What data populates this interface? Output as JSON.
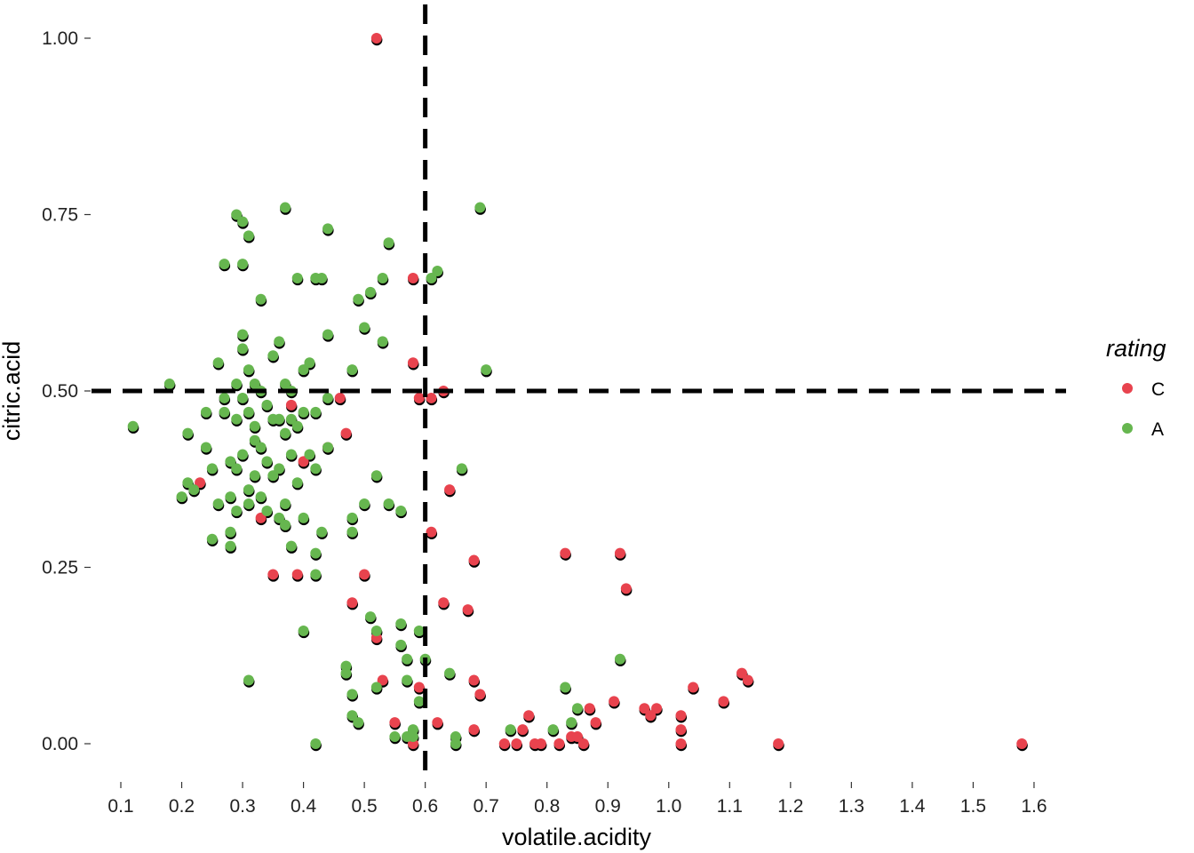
{
  "chart_data": {
    "type": "scatter",
    "xlabel": "volatile.acidity",
    "ylabel": "citric.acid",
    "xlim": [
      0.08,
      1.66
    ],
    "ylim": [
      -0.05,
      1.05
    ],
    "x_ticks": [
      "0.1",
      "0.2",
      "0.3",
      "0.4",
      "0.5",
      "0.6",
      "0.7",
      "0.8",
      "0.9",
      "1.0",
      "1.1",
      "1.2",
      "1.3",
      "1.4",
      "1.5",
      "1.6"
    ],
    "x_tick_values": [
      0.1,
      0.2,
      0.3,
      0.4,
      0.5,
      0.6,
      0.7,
      0.8,
      0.9,
      1.0,
      1.1,
      1.2,
      1.3,
      1.4,
      1.5,
      1.6
    ],
    "y_ticks": [
      "0.00",
      "0.25",
      "0.50",
      "0.75",
      "1.00"
    ],
    "y_tick_values": [
      0,
      0.25,
      0.5,
      0.75,
      1.0
    ],
    "grid": false,
    "reference_lines": {
      "vertical_x": 0.6,
      "horizontal_y": 0.5,
      "style": "dashed",
      "color": "#000000"
    },
    "legend": {
      "title": "rating",
      "placement": "right",
      "entries": [
        {
          "label": "C",
          "color": "#E8434E"
        },
        {
          "label": "A",
          "color": "#66B64F"
        }
      ]
    },
    "series": [
      {
        "name": "C",
        "color": "#E8434E",
        "points": [
          [
            0.52,
            1.0
          ],
          [
            0.58,
            0.66
          ],
          [
            0.58,
            0.54
          ],
          [
            0.59,
            0.49
          ],
          [
            0.61,
            0.49
          ],
          [
            0.63,
            0.5
          ],
          [
            0.46,
            0.49
          ],
          [
            0.47,
            0.44
          ],
          [
            0.44,
            0.42
          ],
          [
            0.4,
            0.4
          ],
          [
            0.38,
            0.48
          ],
          [
            0.23,
            0.37
          ],
          [
            0.33,
            0.32
          ],
          [
            0.35,
            0.24
          ],
          [
            0.39,
            0.24
          ],
          [
            0.5,
            0.24
          ],
          [
            0.48,
            0.2
          ],
          [
            0.52,
            0.15
          ],
          [
            0.53,
            0.09
          ],
          [
            0.55,
            0.03
          ],
          [
            0.59,
            0.08
          ],
          [
            0.58,
            0.0
          ],
          [
            0.61,
            0.3
          ],
          [
            0.64,
            0.36
          ],
          [
            0.62,
            0.03
          ],
          [
            0.63,
            0.2
          ],
          [
            0.67,
            0.19
          ],
          [
            0.68,
            0.26
          ],
          [
            0.68,
            0.09
          ],
          [
            0.69,
            0.07
          ],
          [
            0.68,
            0.02
          ],
          [
            0.73,
            0.0
          ],
          [
            0.75,
            0.0
          ],
          [
            0.76,
            0.02
          ],
          [
            0.77,
            0.04
          ],
          [
            0.78,
            0.0
          ],
          [
            0.79,
            0.0
          ],
          [
            0.82,
            0.0
          ],
          [
            0.83,
            0.27
          ],
          [
            0.84,
            0.01
          ],
          [
            0.85,
            0.01
          ],
          [
            0.86,
            0.0
          ],
          [
            0.87,
            0.05
          ],
          [
            0.88,
            0.03
          ],
          [
            0.91,
            0.06
          ],
          [
            0.92,
            0.27
          ],
          [
            0.93,
            0.22
          ],
          [
            0.96,
            0.05
          ],
          [
            0.97,
            0.04
          ],
          [
            0.98,
            0.05
          ],
          [
            1.02,
            0.04
          ],
          [
            1.02,
            0.02
          ],
          [
            1.02,
            0.0
          ],
          [
            1.04,
            0.08
          ],
          [
            1.09,
            0.06
          ],
          [
            1.12,
            0.1
          ],
          [
            1.13,
            0.09
          ],
          [
            1.18,
            0.0
          ],
          [
            1.58,
            0.0
          ]
        ]
      },
      {
        "name": "A",
        "color": "#66B64F",
        "points": [
          [
            0.12,
            0.45
          ],
          [
            0.18,
            0.51
          ],
          [
            0.2,
            0.35
          ],
          [
            0.21,
            0.37
          ],
          [
            0.21,
            0.44
          ],
          [
            0.22,
            0.36
          ],
          [
            0.24,
            0.47
          ],
          [
            0.24,
            0.42
          ],
          [
            0.25,
            0.39
          ],
          [
            0.25,
            0.29
          ],
          [
            0.26,
            0.54
          ],
          [
            0.26,
            0.34
          ],
          [
            0.27,
            0.68
          ],
          [
            0.27,
            0.49
          ],
          [
            0.27,
            0.47
          ],
          [
            0.28,
            0.4
          ],
          [
            0.28,
            0.35
          ],
          [
            0.28,
            0.3
          ],
          [
            0.28,
            0.28
          ],
          [
            0.29,
            0.75
          ],
          [
            0.29,
            0.51
          ],
          [
            0.29,
            0.46
          ],
          [
            0.29,
            0.39
          ],
          [
            0.29,
            0.33
          ],
          [
            0.3,
            0.74
          ],
          [
            0.3,
            0.68
          ],
          [
            0.3,
            0.58
          ],
          [
            0.3,
            0.56
          ],
          [
            0.3,
            0.49
          ],
          [
            0.3,
            0.41
          ],
          [
            0.31,
            0.72
          ],
          [
            0.31,
            0.53
          ],
          [
            0.31,
            0.47
          ],
          [
            0.31,
            0.36
          ],
          [
            0.31,
            0.34
          ],
          [
            0.31,
            0.09
          ],
          [
            0.32,
            0.51
          ],
          [
            0.32,
            0.45
          ],
          [
            0.32,
            0.43
          ],
          [
            0.32,
            0.38
          ],
          [
            0.33,
            0.63
          ],
          [
            0.33,
            0.5
          ],
          [
            0.33,
            0.42
          ],
          [
            0.33,
            0.35
          ],
          [
            0.34,
            0.48
          ],
          [
            0.34,
            0.4
          ],
          [
            0.34,
            0.33
          ],
          [
            0.35,
            0.55
          ],
          [
            0.35,
            0.46
          ],
          [
            0.35,
            0.38
          ],
          [
            0.36,
            0.57
          ],
          [
            0.36,
            0.46
          ],
          [
            0.36,
            0.39
          ],
          [
            0.36,
            0.32
          ],
          [
            0.37,
            0.76
          ],
          [
            0.37,
            0.51
          ],
          [
            0.37,
            0.44
          ],
          [
            0.37,
            0.34
          ],
          [
            0.37,
            0.31
          ],
          [
            0.38,
            0.5
          ],
          [
            0.38,
            0.46
          ],
          [
            0.38,
            0.41
          ],
          [
            0.38,
            0.28
          ],
          [
            0.39,
            0.66
          ],
          [
            0.39,
            0.45
          ],
          [
            0.39,
            0.37
          ],
          [
            0.4,
            0.53
          ],
          [
            0.4,
            0.47
          ],
          [
            0.4,
            0.32
          ],
          [
            0.4,
            0.16
          ],
          [
            0.41,
            0.54
          ],
          [
            0.41,
            0.41
          ],
          [
            0.42,
            0.66
          ],
          [
            0.42,
            0.47
          ],
          [
            0.42,
            0.39
          ],
          [
            0.42,
            0.27
          ],
          [
            0.42,
            0.24
          ],
          [
            0.42,
            0.0
          ],
          [
            0.43,
            0.66
          ],
          [
            0.43,
            0.3
          ],
          [
            0.44,
            0.73
          ],
          [
            0.44,
            0.58
          ],
          [
            0.44,
            0.49
          ],
          [
            0.44,
            0.42
          ],
          [
            0.47,
            0.11
          ],
          [
            0.47,
            0.1
          ],
          [
            0.48,
            0.53
          ],
          [
            0.48,
            0.32
          ],
          [
            0.48,
            0.3
          ],
          [
            0.48,
            0.07
          ],
          [
            0.48,
            0.04
          ],
          [
            0.49,
            0.63
          ],
          [
            0.49,
            0.03
          ],
          [
            0.5,
            0.59
          ],
          [
            0.5,
            0.34
          ],
          [
            0.51,
            0.64
          ],
          [
            0.51,
            0.18
          ],
          [
            0.52,
            0.38
          ],
          [
            0.52,
            0.16
          ],
          [
            0.52,
            0.08
          ],
          [
            0.53,
            0.66
          ],
          [
            0.53,
            0.57
          ],
          [
            0.54,
            0.71
          ],
          [
            0.54,
            0.34
          ],
          [
            0.55,
            0.01
          ],
          [
            0.56,
            0.33
          ],
          [
            0.56,
            0.17
          ],
          [
            0.56,
            0.14
          ],
          [
            0.57,
            0.12
          ],
          [
            0.57,
            0.09
          ],
          [
            0.57,
            0.01
          ],
          [
            0.58,
            0.02
          ],
          [
            0.58,
            0.01
          ],
          [
            0.59,
            0.16
          ],
          [
            0.59,
            0.06
          ],
          [
            0.6,
            0.12
          ],
          [
            0.61,
            0.66
          ],
          [
            0.62,
            0.67
          ],
          [
            0.64,
            0.1
          ],
          [
            0.65,
            0.0
          ],
          [
            0.65,
            0.01
          ],
          [
            0.66,
            0.39
          ],
          [
            0.69,
            0.76
          ],
          [
            0.7,
            0.53
          ],
          [
            0.74,
            0.02
          ],
          [
            0.81,
            0.02
          ],
          [
            0.83,
            0.08
          ],
          [
            0.84,
            0.03
          ],
          [
            0.85,
            0.05
          ],
          [
            0.92,
            0.12
          ]
        ]
      }
    ]
  }
}
